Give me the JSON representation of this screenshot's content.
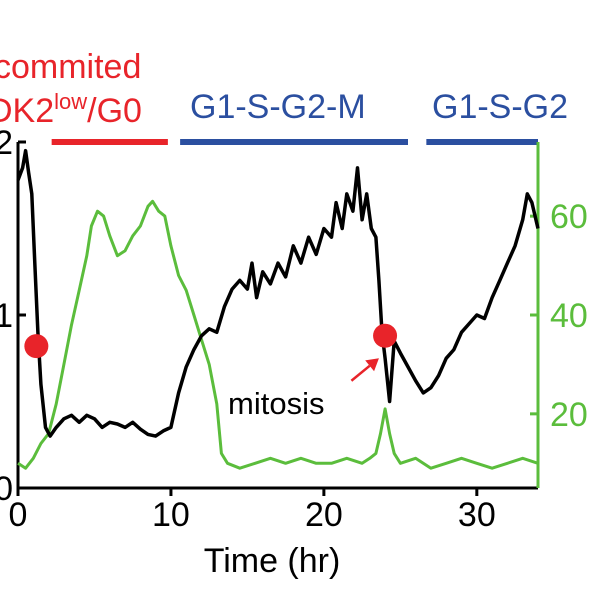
{
  "chart_data": {
    "type": "line",
    "xlabel": "Time (hr)",
    "x_ticks": [
      "0",
      "10",
      "20",
      "30"
    ],
    "xlim": [
      0,
      34
    ],
    "y_left": {
      "ticks": [
        "0",
        "1",
        "2"
      ],
      "ylim": [
        0,
        2
      ],
      "color": "#000000"
    },
    "y_right": {
      "ticks": [
        "20",
        "40",
        "60"
      ],
      "ylim": [
        5,
        75
      ],
      "color": "#5bbd3c"
    },
    "phase_labels": [
      {
        "line1": "commited",
        "line2_pre": "DK2",
        "line2_sup": "low",
        "line2_post": "/G0",
        "color": "#e8242a",
        "bar": [
          2.2,
          9.8
        ]
      },
      {
        "text": "G1-S-G2-M",
        "color": "#2b4fa0",
        "bar": [
          10.6,
          25.5
        ]
      },
      {
        "text": "G1-S-G2",
        "color": "#2b4fa0",
        "bar": [
          26.7,
          34
        ]
      }
    ],
    "annotation": {
      "text": "mitosis",
      "arrow_from": [
        21.8,
        0.62
      ],
      "arrow_to": [
        23.6,
        0.75
      ],
      "color": "#e8242a"
    },
    "markers": [
      {
        "x": 1.2,
        "y": 0.82,
        "color": "#e8242a"
      },
      {
        "x": 24.0,
        "y": 0.88,
        "color": "#e8242a"
      }
    ],
    "series": [
      {
        "axis": "left",
        "color": "#000000",
        "points": [
          [
            0,
            1.78
          ],
          [
            0.3,
            1.85
          ],
          [
            0.5,
            1.95
          ],
          [
            0.7,
            1.82
          ],
          [
            0.9,
            1.7
          ],
          [
            1.1,
            1.3
          ],
          [
            1.3,
            0.9
          ],
          [
            1.5,
            0.6
          ],
          [
            1.8,
            0.35
          ],
          [
            2.1,
            0.3
          ],
          [
            2.5,
            0.35
          ],
          [
            3,
            0.4
          ],
          [
            3.5,
            0.42
          ],
          [
            4,
            0.38
          ],
          [
            4.5,
            0.42
          ],
          [
            5,
            0.4
          ],
          [
            5.5,
            0.35
          ],
          [
            6,
            0.38
          ],
          [
            6.5,
            0.37
          ],
          [
            7,
            0.35
          ],
          [
            7.5,
            0.38
          ],
          [
            8,
            0.34
          ],
          [
            8.5,
            0.31
          ],
          [
            9,
            0.3
          ],
          [
            9.5,
            0.33
          ],
          [
            10,
            0.35
          ],
          [
            10.5,
            0.55
          ],
          [
            11,
            0.7
          ],
          [
            11.5,
            0.8
          ],
          [
            12,
            0.88
          ],
          [
            12.5,
            0.92
          ],
          [
            13,
            0.9
          ],
          [
            13.5,
            1.05
          ],
          [
            14,
            1.15
          ],
          [
            14.5,
            1.2
          ],
          [
            15,
            1.15
          ],
          [
            15.3,
            1.3
          ],
          [
            15.6,
            1.1
          ],
          [
            16,
            1.25
          ],
          [
            16.5,
            1.18
          ],
          [
            17,
            1.3
          ],
          [
            17.5,
            1.22
          ],
          [
            18,
            1.4
          ],
          [
            18.5,
            1.3
          ],
          [
            19,
            1.45
          ],
          [
            19.5,
            1.35
          ],
          [
            20,
            1.5
          ],
          [
            20.5,
            1.45
          ],
          [
            20.8,
            1.65
          ],
          [
            21.2,
            1.5
          ],
          [
            21.5,
            1.7
          ],
          [
            21.9,
            1.6
          ],
          [
            22.2,
            1.85
          ],
          [
            22.5,
            1.55
          ],
          [
            22.8,
            1.7
          ],
          [
            23.1,
            1.5
          ],
          [
            23.4,
            1.45
          ],
          [
            23.6,
            1.2
          ],
          [
            23.8,
            0.9
          ],
          [
            24.0,
            0.75
          ],
          [
            24.3,
            0.5
          ],
          [
            24.6,
            0.85
          ],
          [
            25,
            0.78
          ],
          [
            25.5,
            0.7
          ],
          [
            26,
            0.62
          ],
          [
            26.5,
            0.55
          ],
          [
            27,
            0.58
          ],
          [
            27.5,
            0.65
          ],
          [
            28,
            0.75
          ],
          [
            28.5,
            0.8
          ],
          [
            29,
            0.9
          ],
          [
            29.5,
            0.95
          ],
          [
            30,
            1.0
          ],
          [
            30.5,
            0.98
          ],
          [
            31,
            1.1
          ],
          [
            31.5,
            1.2
          ],
          [
            32,
            1.3
          ],
          [
            32.5,
            1.4
          ],
          [
            33,
            1.55
          ],
          [
            33.3,
            1.7
          ],
          [
            33.6,
            1.65
          ],
          [
            34,
            1.5
          ]
        ]
      },
      {
        "axis": "right",
        "color": "#5bbd3c",
        "points": [
          [
            0,
            10
          ],
          [
            0.5,
            9
          ],
          [
            1,
            11
          ],
          [
            1.5,
            14
          ],
          [
            2,
            16
          ],
          [
            2.5,
            22
          ],
          [
            3,
            30
          ],
          [
            3.5,
            38
          ],
          [
            4,
            45
          ],
          [
            4.5,
            52
          ],
          [
            4.8,
            58
          ],
          [
            5.2,
            61
          ],
          [
            5.6,
            60
          ],
          [
            6,
            56
          ],
          [
            6.5,
            52
          ],
          [
            7,
            53
          ],
          [
            7.5,
            56
          ],
          [
            8,
            58
          ],
          [
            8.5,
            62
          ],
          [
            8.8,
            63
          ],
          [
            9.2,
            61
          ],
          [
            9.6,
            60
          ],
          [
            10,
            54
          ],
          [
            10.5,
            48
          ],
          [
            11,
            45
          ],
          [
            11.5,
            40
          ],
          [
            12,
            35
          ],
          [
            12.5,
            30
          ],
          [
            13,
            22
          ],
          [
            13.3,
            12
          ],
          [
            13.7,
            10
          ],
          [
            14.5,
            9
          ],
          [
            15.5,
            10
          ],
          [
            16.5,
            11
          ],
          [
            17.5,
            10
          ],
          [
            18.5,
            11
          ],
          [
            19.5,
            10
          ],
          [
            20.5,
            10
          ],
          [
            21.5,
            11
          ],
          [
            22.5,
            10
          ],
          [
            23,
            11
          ],
          [
            23.4,
            12
          ],
          [
            23.7,
            16
          ],
          [
            24.0,
            21
          ],
          [
            24.3,
            16
          ],
          [
            24.6,
            12
          ],
          [
            25,
            10
          ],
          [
            26,
            11
          ],
          [
            27,
            9
          ],
          [
            28,
            10
          ],
          [
            29,
            11
          ],
          [
            30,
            10
          ],
          [
            31,
            9
          ],
          [
            32,
            10
          ],
          [
            33,
            11
          ],
          [
            34,
            10
          ]
        ]
      }
    ]
  }
}
